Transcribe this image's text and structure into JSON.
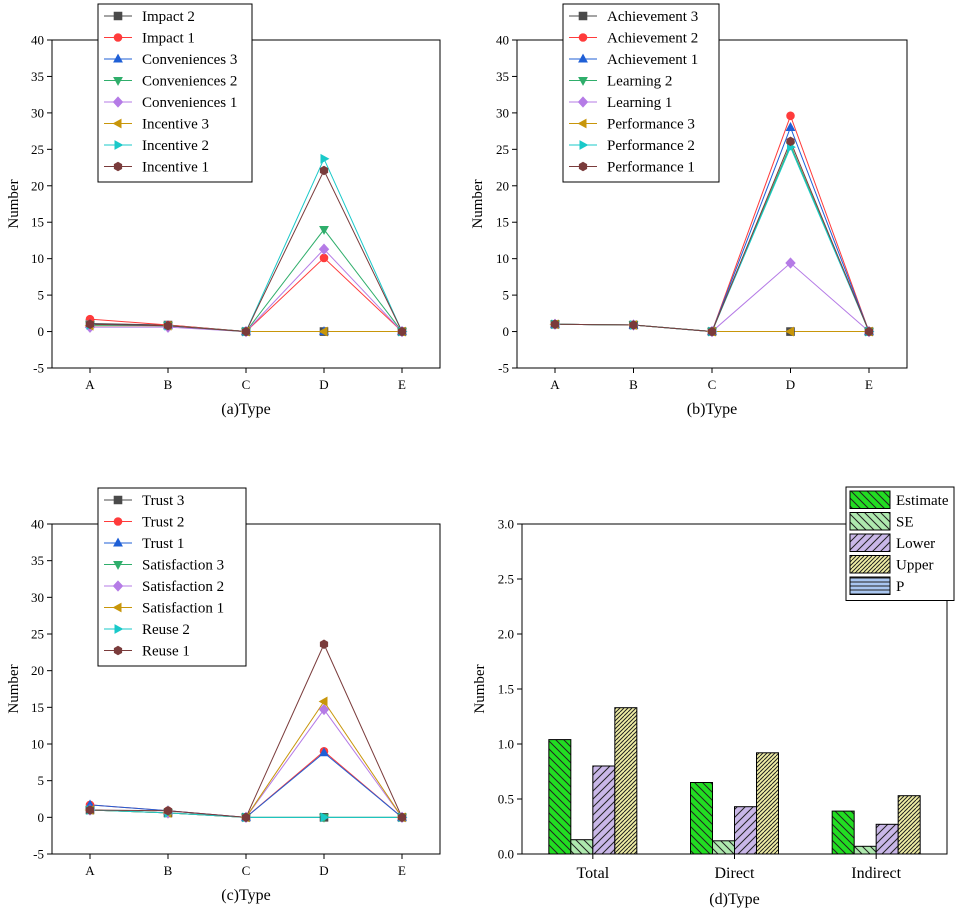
{
  "figure": {
    "width": 957,
    "height": 916
  },
  "chart_data": [
    {
      "id": "a",
      "type": "line",
      "xlabel": "(a)Type",
      "ylabel": "Number",
      "categories": [
        "A",
        "B",
        "C",
        "D",
        "E"
      ],
      "ylim": [
        -5,
        40
      ],
      "yticks": [
        -5,
        0,
        5,
        10,
        15,
        20,
        25,
        30,
        35,
        40
      ],
      "legend_position": "top-center",
      "series": [
        {
          "name": "Impact 2",
          "color": "#4a4a4a",
          "marker": "square",
          "values": [
            1.1,
            0.9,
            0,
            0,
            0
          ]
        },
        {
          "name": "Impact 1",
          "color": "#ff3b3b",
          "marker": "circle",
          "values": [
            1.7,
            0.9,
            0,
            10.1,
            0
          ]
        },
        {
          "name": "Conveniences 3",
          "color": "#1f5fd6",
          "marker": "triangle-up",
          "values": [
            1.0,
            0.8,
            0,
            0,
            0
          ]
        },
        {
          "name": "Conveniences 2",
          "color": "#2fae6b",
          "marker": "triangle-down",
          "values": [
            0.9,
            0.8,
            0,
            14.0,
            0
          ]
        },
        {
          "name": "Conveniences 1",
          "color": "#b57be6",
          "marker": "diamond",
          "values": [
            0.6,
            0.6,
            0,
            11.3,
            0
          ]
        },
        {
          "name": "Incentive 3",
          "color": "#c8960a",
          "marker": "triangle-left",
          "values": [
            0.8,
            0.8,
            0,
            0,
            0
          ]
        },
        {
          "name": "Incentive 2",
          "color": "#19c9c9",
          "marker": "triangle-right",
          "values": [
            0.9,
            0.8,
            0,
            23.7,
            0
          ]
        },
        {
          "name": "Incentive 1",
          "color": "#7a3b3b",
          "marker": "hexagon",
          "values": [
            1.0,
            0.8,
            0,
            22.1,
            0
          ]
        }
      ]
    },
    {
      "id": "b",
      "type": "line",
      "xlabel": "(b)Type",
      "ylabel": "Number",
      "categories": [
        "A",
        "B",
        "C",
        "D",
        "E"
      ],
      "ylim": [
        -5,
        40
      ],
      "yticks": [
        -5,
        0,
        5,
        10,
        15,
        20,
        25,
        30,
        35,
        40
      ],
      "legend_position": "top-center",
      "series": [
        {
          "name": "Achievement 3",
          "color": "#4a4a4a",
          "marker": "square",
          "values": [
            1.0,
            0.9,
            0,
            0,
            0
          ]
        },
        {
          "name": "Achievement 2",
          "color": "#ff3b3b",
          "marker": "circle",
          "values": [
            1.0,
            0.9,
            0,
            29.6,
            0
          ]
        },
        {
          "name": "Achievement 1",
          "color": "#1f5fd6",
          "marker": "triangle-up",
          "values": [
            1.0,
            0.9,
            0,
            28.0,
            0
          ]
        },
        {
          "name": "Learning 2",
          "color": "#2fae6b",
          "marker": "triangle-down",
          "values": [
            1.0,
            0.9,
            0,
            25.6,
            0
          ]
        },
        {
          "name": "Learning 1",
          "color": "#b57be6",
          "marker": "diamond",
          "values": [
            1.0,
            0.9,
            0,
            9.4,
            0
          ]
        },
        {
          "name": "Performance 3",
          "color": "#c8960a",
          "marker": "triangle-left",
          "values": [
            1.0,
            0.9,
            0,
            0,
            0
          ]
        },
        {
          "name": "Performance 2",
          "color": "#19c9c9",
          "marker": "triangle-right",
          "values": [
            1.0,
            0.9,
            0,
            25.3,
            0
          ]
        },
        {
          "name": "Performance 1",
          "color": "#7a3b3b",
          "marker": "hexagon",
          "values": [
            1.0,
            0.9,
            0,
            26.1,
            0
          ]
        }
      ]
    },
    {
      "id": "c",
      "type": "line",
      "xlabel": "(c)Type",
      "ylabel": "Number",
      "categories": [
        "A",
        "B",
        "C",
        "D",
        "E"
      ],
      "ylim": [
        -5,
        40
      ],
      "yticks": [
        -5,
        0,
        5,
        10,
        15,
        20,
        25,
        30,
        35,
        40
      ],
      "legend_position": "top-center",
      "series": [
        {
          "name": "Trust 3",
          "color": "#4a4a4a",
          "marker": "square",
          "values": [
            1.0,
            0.6,
            0,
            0,
            0
          ]
        },
        {
          "name": "Trust 2",
          "color": "#ff3b3b",
          "marker": "circle",
          "values": [
            1.7,
            0.9,
            0,
            9.0,
            0
          ]
        },
        {
          "name": "Trust 1",
          "color": "#1f5fd6",
          "marker": "triangle-up",
          "values": [
            1.7,
            0.9,
            0,
            8.8,
            0
          ]
        },
        {
          "name": "Satisfaction 3",
          "color": "#2fae6b",
          "marker": "triangle-down",
          "values": [
            1.0,
            0.6,
            0,
            0,
            0
          ]
        },
        {
          "name": "Satisfaction 2",
          "color": "#b57be6",
          "marker": "diamond",
          "values": [
            1.0,
            0.6,
            0,
            14.7,
            0
          ]
        },
        {
          "name": "Satisfaction 1",
          "color": "#c8960a",
          "marker": "triangle-left",
          "values": [
            1.0,
            0.6,
            0,
            15.8,
            0
          ]
        },
        {
          "name": "Reuse 2",
          "color": "#19c9c9",
          "marker": "triangle-right",
          "values": [
            1.0,
            0.6,
            0,
            0,
            0
          ]
        },
        {
          "name": "Reuse 1",
          "color": "#7a3b3b",
          "marker": "hexagon",
          "values": [
            1.0,
            0.9,
            0,
            23.6,
            0
          ]
        }
      ]
    },
    {
      "id": "d",
      "type": "bar",
      "xlabel": "(d)Type",
      "ylabel": "Number",
      "categories": [
        "Total",
        "Direct",
        "Indirect"
      ],
      "ylim": [
        0,
        3.0
      ],
      "yticks": [
        "0.0",
        "0.5",
        "1.0",
        "1.5",
        "2.0",
        "2.5",
        "3.0"
      ],
      "legend_position": "top-right",
      "series": [
        {
          "name": "Estimate",
          "color": "#22dd22",
          "pattern": "diag-left",
          "values": [
            1.04,
            0.65,
            0.39
          ]
        },
        {
          "name": "SE",
          "color": "#aee8ae",
          "pattern": "diag-left-sparse",
          "values": [
            0.13,
            0.12,
            0.07
          ]
        },
        {
          "name": "Lower",
          "color": "#c9b7e8",
          "pattern": "diag-right",
          "values": [
            0.8,
            0.43,
            0.27
          ]
        },
        {
          "name": "Upper",
          "color": "#f2f0a6",
          "pattern": "diag-right-dense",
          "values": [
            1.33,
            0.92,
            0.53
          ]
        },
        {
          "name": "P",
          "color": "#a9c6f0",
          "pattern": "horizontal",
          "values": [
            0,
            0,
            0
          ]
        }
      ]
    }
  ]
}
